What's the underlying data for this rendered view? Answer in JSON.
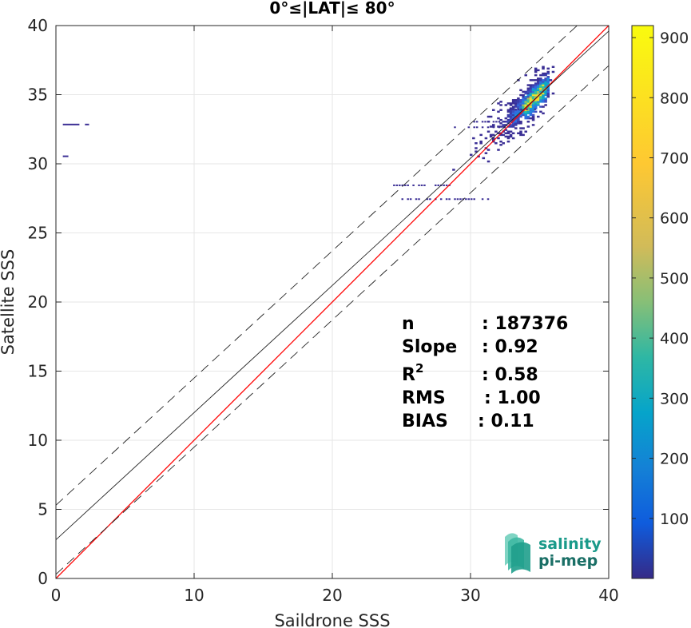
{
  "chart_data": {
    "type": "heatmap",
    "title": "0°≤|LAT|≤ 80°",
    "xlabel": "Saildrone SSS",
    "ylabel": "Satellite SSS",
    "xlim": [
      0,
      40
    ],
    "ylim": [
      0,
      40
    ],
    "xticks": [
      "0",
      "10",
      "20",
      "30",
      "40"
    ],
    "yticks": [
      "0",
      "5",
      "10",
      "15",
      "20",
      "25",
      "30",
      "35",
      "40"
    ],
    "grid": true,
    "colorbar": {
      "range": [
        0,
        920
      ],
      "ticks": [
        "100",
        "200",
        "300",
        "400",
        "500",
        "600",
        "700",
        "800",
        "900"
      ],
      "colormap": "parula"
    },
    "lines": [
      {
        "name": "one-to-one",
        "color": "#ff0000",
        "style": "solid",
        "slope": 1,
        "intercept": 0
      },
      {
        "name": "fit",
        "color": "#222222",
        "style": "solid",
        "slope": 0.92,
        "intercept": 2.8
      },
      {
        "name": "fit-upper",
        "color": "#222222",
        "style": "dashed",
        "slope": 0.92,
        "intercept": 5.3
      },
      {
        "name": "fit-lower",
        "color": "#222222",
        "style": "dashed",
        "slope": 0.92,
        "intercept": 0.3
      }
    ],
    "density_core": {
      "x": [
        31,
        35.5
      ],
      "y": [
        31,
        35.8
      ],
      "peak": 900
    },
    "stats": [
      {
        "label": "n",
        "value": ": 187376"
      },
      {
        "label": "Slope",
        "value": ": 0.92"
      },
      {
        "label": "R",
        "sup": "2",
        "value": ": 0.58"
      },
      {
        "label": "RMS",
        "value": ": 1.00"
      },
      {
        "label": "BIAS",
        "value": ": 0.11"
      }
    ]
  },
  "logo": {
    "line1": "salinity",
    "line2": "pi-mep",
    "color": "#1a9a8a"
  }
}
